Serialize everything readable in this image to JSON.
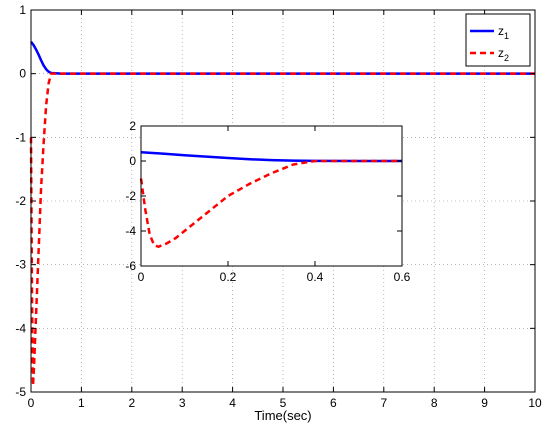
{
  "chart_data": {
    "type": "line",
    "xlabel": "Time(sec)",
    "ylabel": "",
    "title": "",
    "xlim": [
      0,
      10
    ],
    "ylim": [
      -5,
      1
    ],
    "xticks": [
      0,
      1,
      2,
      3,
      4,
      5,
      6,
      7,
      8,
      9,
      10
    ],
    "yticks": [
      -5,
      -4,
      -3,
      -2,
      -1,
      0,
      1
    ],
    "grid": true,
    "legend_position": "top-right",
    "series": [
      {
        "name": "z",
        "name_subscript": "1",
        "color": "#0000ff",
        "style": "solid",
        "x": [
          0,
          0.05,
          0.1,
          0.15,
          0.2,
          0.25,
          0.3,
          0.35,
          0.4,
          0.6,
          1,
          2,
          4,
          6,
          8,
          10
        ],
        "y": [
          0.5,
          0.45,
          0.38,
          0.3,
          0.21,
          0.13,
          0.07,
          0.03,
          0.01,
          0,
          0,
          0,
          0,
          0,
          0,
          0
        ]
      },
      {
        "name": "z",
        "name_subscript": "2",
        "color": "#ff0000",
        "style": "dashed",
        "x": [
          0,
          0.02,
          0.04,
          0.06,
          0.1,
          0.15,
          0.2,
          0.25,
          0.3,
          0.35,
          0.4,
          0.6,
          1,
          2,
          4,
          6,
          8,
          10
        ],
        "y": [
          -1,
          -3.5,
          -4.9,
          -4.6,
          -3.8,
          -2.8,
          -1.8,
          -1.1,
          -0.5,
          -0.15,
          0,
          0,
          0,
          0,
          0,
          0,
          0,
          0
        ]
      }
    ],
    "inset": {
      "xlim": [
        0,
        0.6
      ],
      "ylim": [
        -6,
        2
      ],
      "xticks": [
        0,
        0.2,
        0.4,
        0.6
      ],
      "yticks": [
        -6,
        -4,
        -2,
        0,
        2
      ],
      "series": [
        {
          "color": "#0000ff",
          "style": "solid",
          "x": [
            0,
            0.05,
            0.1,
            0.15,
            0.2,
            0.25,
            0.3,
            0.35,
            0.4,
            0.5,
            0.6
          ],
          "y": [
            0.5,
            0.42,
            0.33,
            0.25,
            0.17,
            0.1,
            0.05,
            0.02,
            0.01,
            0,
            0
          ]
        },
        {
          "color": "#ff0000",
          "style": "dashed",
          "x": [
            0,
            0.01,
            0.02,
            0.03,
            0.04,
            0.06,
            0.08,
            0.1,
            0.12,
            0.15,
            0.18,
            0.2,
            0.25,
            0.3,
            0.35,
            0.4,
            0.5,
            0.6
          ],
          "y": [
            -1,
            -2.8,
            -4.2,
            -4.8,
            -4.9,
            -4.7,
            -4.4,
            -4.0,
            -3.6,
            -3.0,
            -2.4,
            -2.0,
            -1.3,
            -0.7,
            -0.2,
            0,
            0,
            0
          ]
        }
      ]
    }
  }
}
